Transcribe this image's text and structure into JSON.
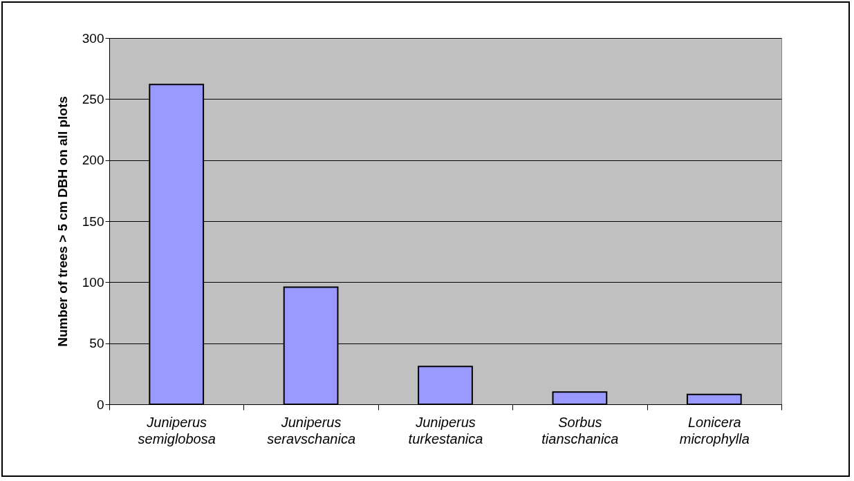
{
  "chart_data": {
    "type": "bar",
    "ylabel": "Number of trees > 5 cm DBH on all plots",
    "categories": [
      "Juniperus semiglobosa",
      "Juniperus seravschanica",
      "Juniperus turkestanica",
      "Sorbus tianschanica",
      "Lonicera microphylla"
    ],
    "values": [
      262,
      96,
      31,
      10,
      8
    ],
    "color": "#9999ff",
    "ylim": [
      0,
      300
    ],
    "yticks": [
      0,
      50,
      100,
      150,
      200,
      250,
      300
    ],
    "grid": "y"
  }
}
